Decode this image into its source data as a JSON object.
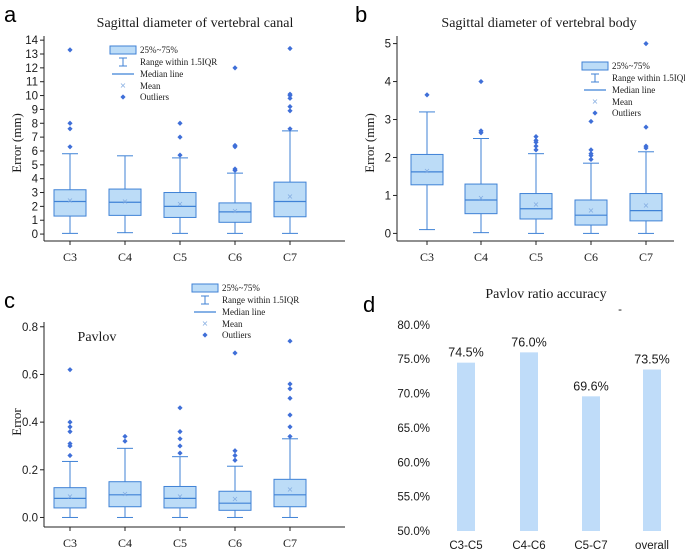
{
  "panels": {
    "a": "a",
    "b": "b",
    "c": "c",
    "d": "d"
  },
  "legend": {
    "box": "25%~75%",
    "range": "Range within 1.5IQR",
    "median": "Median line",
    "mean": "Mean",
    "outliers": "Outliers"
  },
  "colors": {
    "box_fill": "#bcdcf7",
    "box_stroke": "#3f82d6",
    "outlier": "#3f6fd8",
    "mean": "#7fa9e0",
    "bar_fill": "#bfdcf9"
  },
  "chart_data": [
    {
      "id": "a",
      "type": "box",
      "title": "Sagittal diameter of vertebral canal",
      "ylabel": "Error (mm)",
      "xlabel": "",
      "categories": [
        "C3",
        "C4",
        "C5",
        "C6",
        "C7"
      ],
      "ylim": [
        -0.5,
        14.3
      ],
      "yticks": [
        0,
        1,
        2,
        3,
        4,
        5,
        6,
        7,
        8,
        9,
        10,
        11,
        12,
        13,
        14
      ],
      "boxes": [
        {
          "min": 0.05,
          "q1": 1.3,
          "median": 2.35,
          "q3": 3.2,
          "max": 5.8,
          "mean": 2.45,
          "outliers": [
            6.3,
            7.6,
            8.0,
            13.3
          ]
        },
        {
          "min": 0.1,
          "q1": 1.35,
          "median": 2.3,
          "q3": 3.25,
          "max": 5.65,
          "mean": 2.4,
          "outliers": []
        },
        {
          "min": 0.05,
          "q1": 1.2,
          "median": 2.0,
          "q3": 3.0,
          "max": 5.5,
          "mean": 2.2,
          "outliers": [
            5.7,
            7.0,
            8.0
          ]
        },
        {
          "min": 0.05,
          "q1": 0.85,
          "median": 1.6,
          "q3": 2.25,
          "max": 4.4,
          "mean": 1.7,
          "outliers": [
            4.6,
            4.7,
            6.3,
            6.4,
            12.0
          ]
        },
        {
          "min": 0.05,
          "q1": 1.25,
          "median": 2.35,
          "q3": 3.75,
          "max": 7.45,
          "mean": 2.75,
          "outliers": [
            7.6,
            8.9,
            9.2,
            9.8,
            10.0,
            10.1,
            13.4
          ]
        }
      ]
    },
    {
      "id": "b",
      "type": "box",
      "title": "Sagittal diameter of vertebral body",
      "ylabel": "Error (mm)",
      "xlabel": "",
      "categories": [
        "C3",
        "C4",
        "C5",
        "C6",
        "C7"
      ],
      "ylim": [
        -0.2,
        5.2
      ],
      "yticks": [
        0,
        1,
        2,
        3,
        4,
        5
      ],
      "boxes": [
        {
          "min": 0.1,
          "q1": 1.28,
          "median": 1.62,
          "q3": 2.08,
          "max": 3.2,
          "mean": 1.66,
          "outliers": [
            3.65
          ]
        },
        {
          "min": 0.02,
          "q1": 0.52,
          "median": 0.88,
          "q3": 1.3,
          "max": 2.5,
          "mean": 0.95,
          "outliers": [
            2.65,
            2.7,
            4.0
          ]
        },
        {
          "min": 0.0,
          "q1": 0.38,
          "median": 0.65,
          "q3": 1.05,
          "max": 2.1,
          "mean": 0.78,
          "outliers": [
            2.2,
            2.3,
            2.4,
            2.45,
            2.55
          ]
        },
        {
          "min": 0.0,
          "q1": 0.22,
          "median": 0.48,
          "q3": 0.88,
          "max": 1.85,
          "mean": 0.62,
          "outliers": [
            1.95,
            2.05,
            2.1,
            2.2,
            2.95
          ]
        },
        {
          "min": 0.0,
          "q1": 0.33,
          "median": 0.6,
          "q3": 1.05,
          "max": 2.15,
          "mean": 0.75,
          "outliers": [
            2.25,
            2.3,
            2.8,
            5.0
          ]
        }
      ]
    },
    {
      "id": "c",
      "type": "box",
      "title": "Pavlov",
      "ylabel": "Error",
      "xlabel": "",
      "categories": [
        "C3",
        "C4",
        "C5",
        "C6",
        "C7"
      ],
      "ylim": [
        -0.04,
        0.82
      ],
      "yticks": [
        0.0,
        0.2,
        0.4,
        0.6,
        0.8
      ],
      "ytick_labels": [
        "0.0",
        "0.2",
        "0.4",
        "0.6",
        "0.8"
      ],
      "boxes": [
        {
          "min": 0.0,
          "q1": 0.04,
          "median": 0.08,
          "q3": 0.125,
          "max": 0.235,
          "mean": 0.09,
          "outliers": [
            0.26,
            0.3,
            0.31,
            0.36,
            0.38,
            0.4,
            0.62
          ]
        },
        {
          "min": 0.0,
          "q1": 0.045,
          "median": 0.095,
          "q3": 0.15,
          "max": 0.29,
          "mean": 0.1,
          "outliers": [
            0.32,
            0.34
          ]
        },
        {
          "min": 0.0,
          "q1": 0.04,
          "median": 0.08,
          "q3": 0.13,
          "max": 0.255,
          "mean": 0.09,
          "outliers": [
            0.27,
            0.3,
            0.33,
            0.36,
            0.46
          ]
        },
        {
          "min": 0.0,
          "q1": 0.03,
          "median": 0.06,
          "q3": 0.11,
          "max": 0.215,
          "mean": 0.08,
          "outliers": [
            0.24,
            0.26,
            0.28,
            0.69
          ]
        },
        {
          "min": 0.0,
          "q1": 0.045,
          "median": 0.095,
          "q3": 0.16,
          "max": 0.33,
          "mean": 0.12,
          "outliers": [
            0.34,
            0.38,
            0.43,
            0.5,
            0.54,
            0.56,
            0.74
          ]
        }
      ]
    },
    {
      "id": "d",
      "type": "bar",
      "title": "Pavlov ratio accuracy",
      "ylabel": "",
      "xlabel": "",
      "categories": [
        "C3-C5",
        "C4-C6",
        "C5-C7",
        "overall"
      ],
      "values": [
        74.5,
        76.0,
        69.6,
        73.5
      ],
      "value_labels": [
        "74.5%",
        "76.0%",
        "69.6%",
        "73.5%"
      ],
      "ylim": [
        50,
        81
      ],
      "yticks": [
        50,
        55,
        60,
        65,
        70,
        75,
        80
      ],
      "ytick_labels": [
        "50.0%",
        "55.0%",
        "60.0%",
        "65.0%",
        "70.0%",
        "75.0%",
        "80.0%"
      ],
      "grid": false,
      "title_mark": "-"
    }
  ]
}
